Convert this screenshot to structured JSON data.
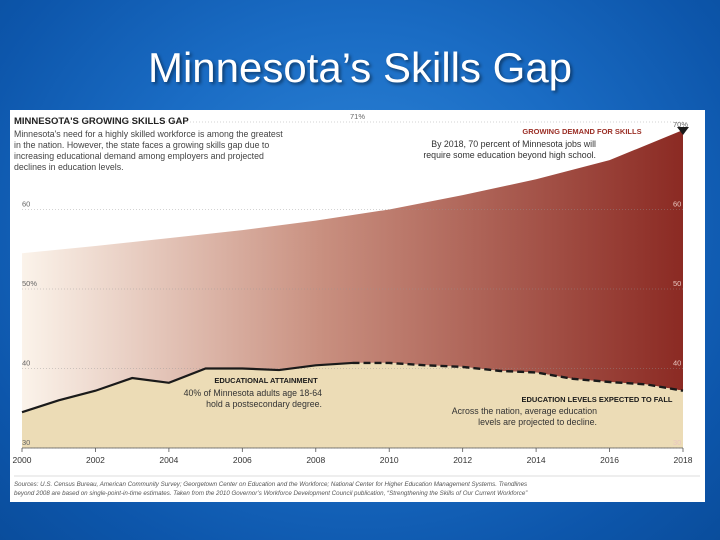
{
  "slide": {
    "title": "Minnesota’s Skills Gap"
  },
  "chart_data": {
    "type": "area",
    "title": "MINNESOTA'S GROWING SKILLS GAP",
    "subtitle": [
      "Minnesota's need for a highly skilled workforce is among the greatest",
      "in the nation. However, the state faces a growing skills gap due to",
      "increasing educational demand among employers and projected",
      "declines in education levels."
    ],
    "x_ticks": [
      "2000",
      "2002",
      "2004",
      "2006",
      "2008",
      "2010",
      "2012",
      "2014",
      "2016",
      "2018"
    ],
    "ylim": [
      30,
      71
    ],
    "y_ticks_left": [
      {
        "value": 71,
        "label": "71%"
      },
      {
        "value": 60,
        "label": "60"
      },
      {
        "value": 50,
        "label": "50%"
      },
      {
        "value": 40,
        "label": "40"
      },
      {
        "value": 30,
        "label": "30"
      }
    ],
    "y_ticks_right": [
      {
        "value": 70,
        "label": "70%"
      },
      {
        "value": 60,
        "label": "60"
      },
      {
        "value": 50,
        "label": "50"
      },
      {
        "value": 40,
        "label": "40"
      },
      {
        "value": 30,
        "label": "30"
      }
    ],
    "series": [
      {
        "name": "GROWING DEMAND FOR SKILLS",
        "points": [
          [
            2000,
            54.5
          ],
          [
            2002,
            55.4
          ],
          [
            2004,
            56.4
          ],
          [
            2006,
            57.4
          ],
          [
            2008,
            58.6
          ],
          [
            2010,
            60.0
          ],
          [
            2012,
            61.8
          ],
          [
            2014,
            63.8
          ],
          [
            2016,
            66.2
          ],
          [
            2018,
            70.0
          ]
        ],
        "color": "#8b2a23"
      },
      {
        "name": "EDUCATIONAL ATTAINMENT",
        "points": [
          [
            2000,
            34.5
          ],
          [
            2001,
            36.0
          ],
          [
            2002,
            37.2
          ],
          [
            2003,
            38.8
          ],
          [
            2004,
            38.2
          ],
          [
            2005,
            40.0
          ],
          [
            2006,
            40.0
          ],
          [
            2007,
            39.8
          ],
          [
            2008,
            40.4
          ],
          [
            2009,
            40.7
          ]
        ],
        "style": "solid",
        "color": "#1a1a1a"
      },
      {
        "name": "EDUCATION LEVELS EXPECTED TO FALL",
        "points": [
          [
            2009,
            40.7
          ],
          [
            2010,
            40.7
          ],
          [
            2011,
            40.4
          ],
          [
            2012,
            40.2
          ],
          [
            2013,
            39.7
          ],
          [
            2014,
            39.5
          ],
          [
            2015,
            38.7
          ],
          [
            2016,
            38.3
          ],
          [
            2017,
            38.0
          ],
          [
            2018,
            37.2
          ]
        ],
        "style": "dashed",
        "color": "#1a1a1a"
      }
    ],
    "fill_colors": {
      "demand_light": "#fbf3ea",
      "demand_mid": "#c99080",
      "demand_dark": "#8b2a23",
      "attainment": "#ecdcb6"
    },
    "annotations": {
      "demand": {
        "heading": "GROWING DEMAND FOR SKILLS",
        "lines": [
          "By 2018, 70 percent of Minnesota jobs will",
          "require some education beyond high school."
        ],
        "color": "#9b2f26"
      },
      "attainment": {
        "heading": "EDUCATIONAL ATTAINMENT",
        "lines": [
          "40% of Minnesota adults age 18-64",
          "hold a postsecondary degree."
        ]
      },
      "fall": {
        "heading": "EDUCATION LEVELS EXPECTED TO FALL",
        "lines": [
          "Across the nation, average education",
          "levels are projected to decline."
        ]
      }
    },
    "source": [
      "Sources: U.S. Census Bureau, American Community Survey; Georgetown Center on Education and the Workforce; National Center for Higher Education Management Systems. Trendlines",
      "beyond 2008 are based on single-point-in-time estimates.  Taken from the 2010 Governor’s Workforce Development Council publication, “Strengthening the Skills of Our Current Workforce”"
    ],
    "legend": "none",
    "grid": "dotted-horizontal"
  }
}
